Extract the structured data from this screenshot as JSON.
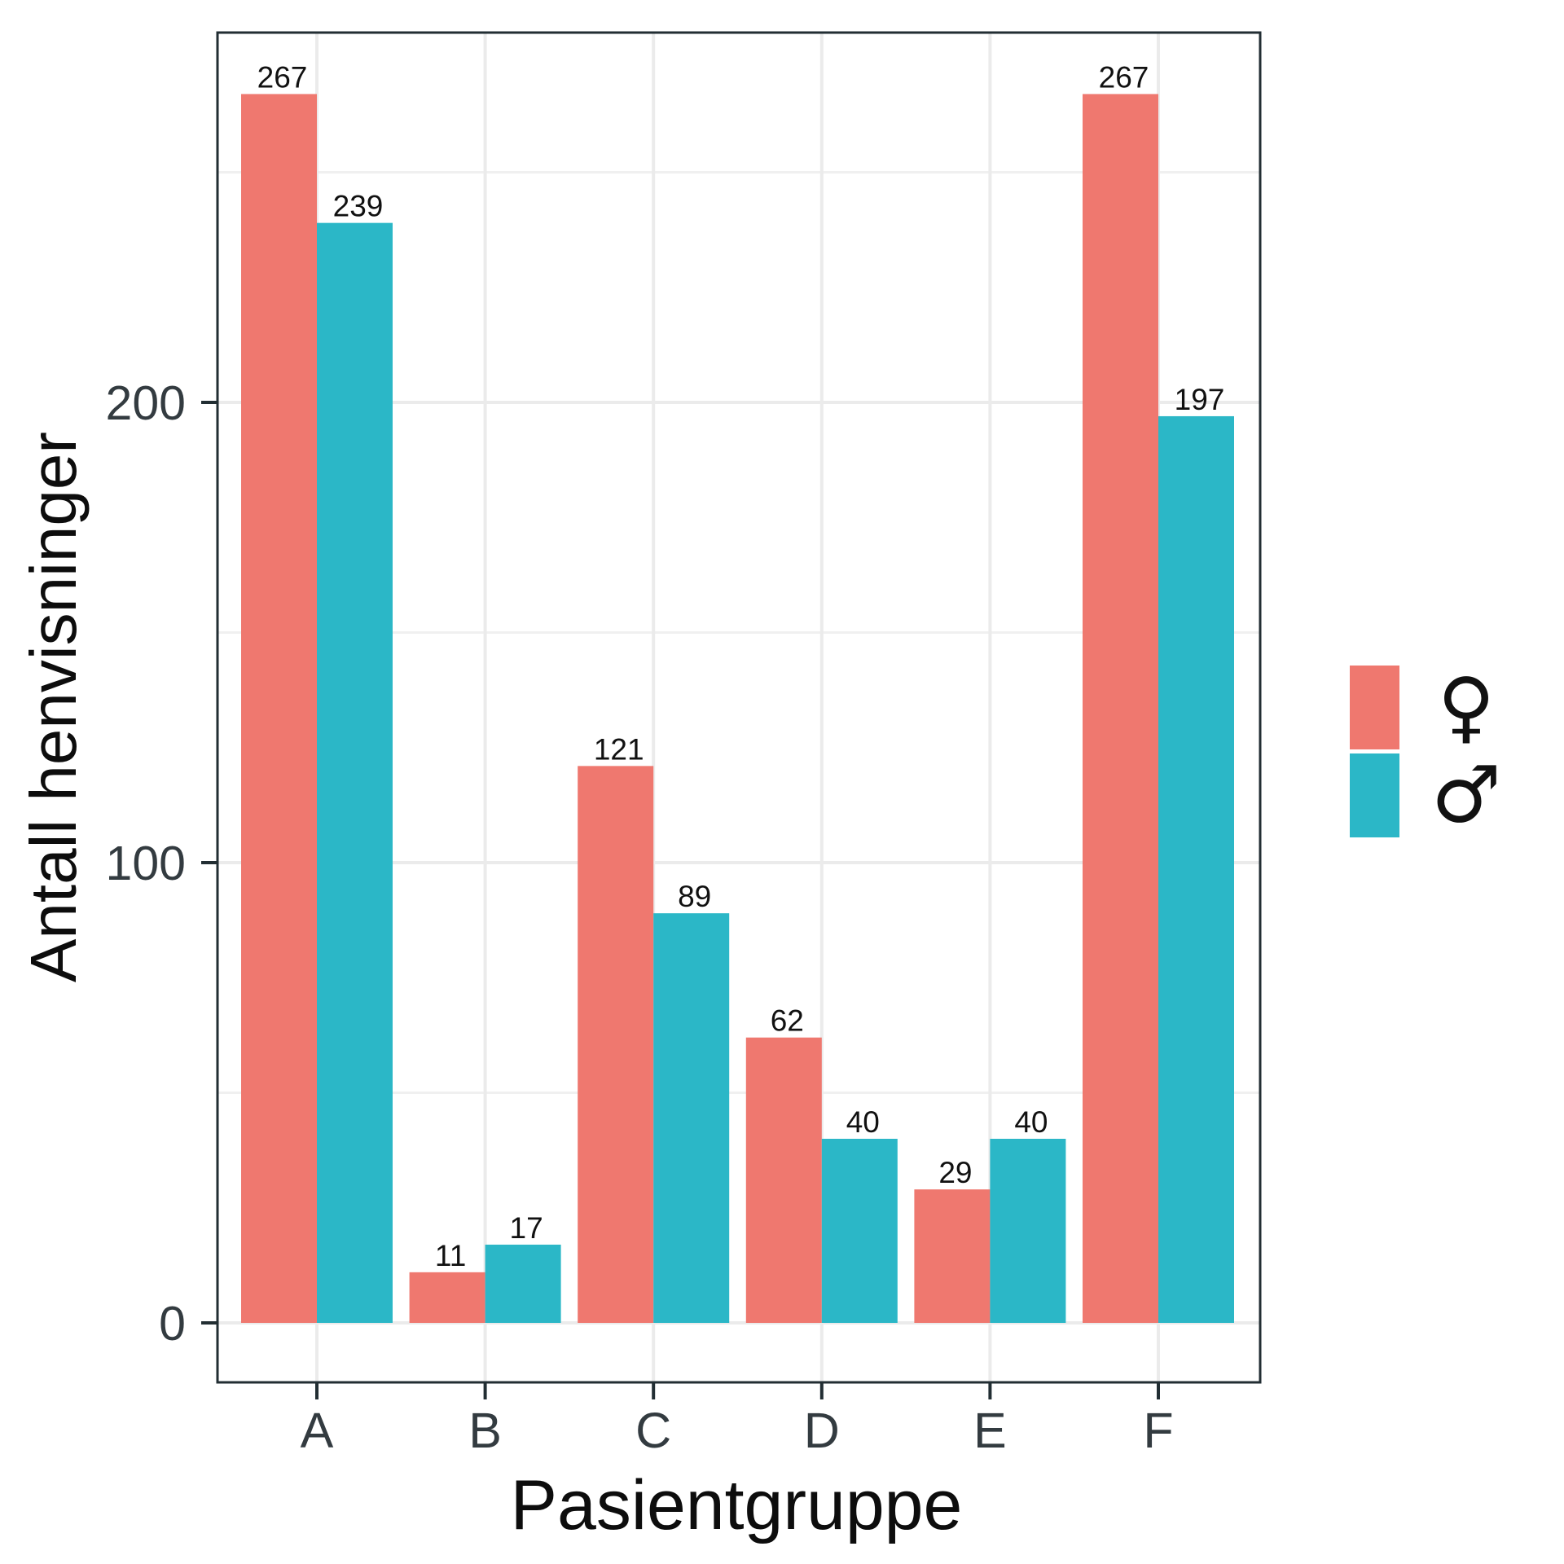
{
  "chart_data": {
    "type": "bar",
    "title": "",
    "xlabel": "Pasientgruppe",
    "ylabel": "Antall henvisninger",
    "categories": [
      "A",
      "B",
      "C",
      "D",
      "E",
      "F"
    ],
    "series": [
      {
        "name": "♀",
        "color": "#EF786F",
        "values": [
          267,
          11,
          121,
          62,
          29,
          267
        ]
      },
      {
        "name": "♂",
        "color": "#2BB7C7",
        "values": [
          239,
          17,
          89,
          40,
          40,
          197
        ]
      }
    ],
    "ylim": [
      -13,
      280
    ],
    "yticks": [
      0,
      100,
      200
    ],
    "yticks_labels": [
      "0",
      "100",
      "200"
    ],
    "minor_gridlines": [
      50,
      150,
      250
    ],
    "grid": true,
    "legend": {
      "position": "right",
      "entries": [
        "♀",
        "♂"
      ]
    },
    "data_labels": true
  }
}
